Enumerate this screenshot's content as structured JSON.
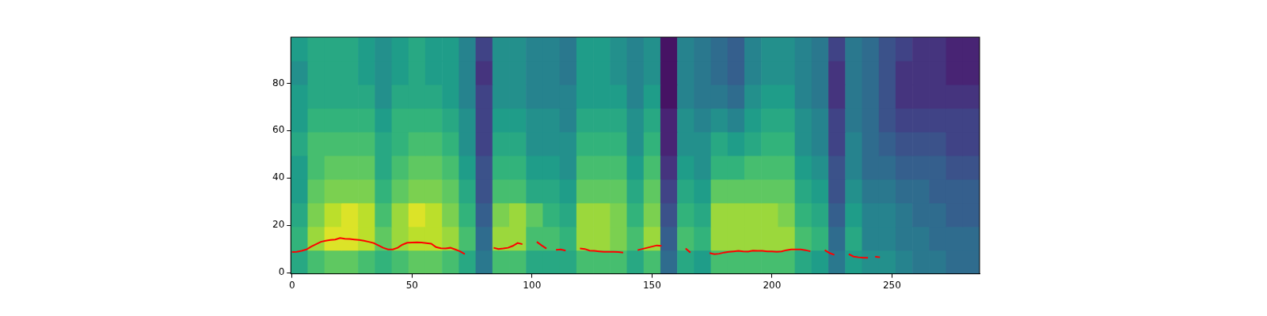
{
  "chart_data": {
    "type": "heatmap",
    "x_edges": [
      -0.5,
      6.5,
      13.5,
      20.5,
      27.5,
      34.5,
      41.5,
      48.5,
      55.5,
      62.5,
      69.5,
      76.5,
      83.5,
      90.5,
      97.5,
      104.5,
      111.5,
      118.5,
      125.5,
      132.5,
      139.5,
      146.5,
      153.5,
      160.5,
      167.5,
      174.5,
      181.5,
      188.5,
      195.5,
      202.5,
      209.5,
      216.5,
      223.5,
      230.5,
      237.5,
      244.5,
      251.5,
      258.5,
      265.5,
      272.5,
      279.5,
      286.5
    ],
    "y_edges": [
      -0.5,
      9.5,
      19.5,
      29.5,
      39.5,
      49.5,
      59.5,
      69.5,
      79.5,
      89.5,
      99.5
    ],
    "cells": [
      [
        6,
        7,
        7.5,
        7.5,
        7,
        6.5,
        7,
        7.5,
        7.5,
        7,
        6,
        4,
        7,
        7,
        6,
        6,
        6,
        7,
        7,
        7,
        6,
        7,
        3.5,
        6,
        5.5,
        7,
        7,
        7,
        7,
        7,
        6,
        5.5,
        4,
        5.5,
        5,
        5,
        4.5,
        4,
        4,
        3.5,
        3.5
      ],
      [
        6.5,
        8.5,
        9.5,
        9.5,
        9,
        7.5,
        8.5,
        9,
        9,
        8.5,
        7,
        3.5,
        8.5,
        8.5,
        7,
        7,
        6.5,
        8.5,
        8.5,
        8,
        7,
        8.5,
        3,
        7,
        6.5,
        8.5,
        8.5,
        8.5,
        8.5,
        8.5,
        7,
        6.5,
        3.5,
        6,
        4.5,
        4.5,
        4,
        4,
        3.5,
        3.5,
        3.5
      ],
      [
        6,
        8,
        9,
        9.5,
        9,
        7,
        8.5,
        9.5,
        9,
        8,
        6.5,
        3,
        8,
        8.5,
        7.5,
        6.5,
        6,
        8.5,
        8.5,
        8,
        6.5,
        8,
        2.5,
        6.5,
        6,
        8.5,
        8.5,
        8.5,
        8.5,
        8,
        6.5,
        6,
        3,
        5.5,
        4.5,
        4.5,
        4,
        3.5,
        3.5,
        3,
        3
      ],
      [
        5.5,
        7.5,
        8,
        8,
        8,
        6.5,
        7.5,
        8,
        8,
        7.5,
        6,
        2.5,
        7,
        7,
        6,
        6,
        5.5,
        7.5,
        7.5,
        7.5,
        6,
        7.5,
        2,
        6,
        5.5,
        7.5,
        7.5,
        7.5,
        7.5,
        7.5,
        6,
        5.5,
        2.5,
        5,
        4,
        4,
        3.5,
        3.5,
        3,
        3,
        3
      ],
      [
        5.5,
        7,
        7.5,
        7.5,
        7.5,
        6,
        7,
        7.5,
        7.5,
        7,
        5.5,
        2.5,
        6.5,
        6.5,
        5.5,
        5.5,
        5,
        7,
        7,
        7,
        5.5,
        7,
        1.5,
        5.5,
        5,
        6.5,
        6.5,
        7,
        7,
        7,
        5.5,
        5,
        2.5,
        4.5,
        3.5,
        3.5,
        3,
        3,
        3,
        2.5,
        2.5
      ],
      [
        6,
        7,
        7,
        7,
        7,
        6,
        6.5,
        7,
        7,
        6.5,
        5,
        2,
        6,
        6,
        5,
        5,
        5,
        6.5,
        6.5,
        6.5,
        5,
        6.5,
        1,
        5,
        5,
        6,
        5.5,
        6,
        6.5,
        6.5,
        5,
        4.5,
        2,
        4.5,
        3.5,
        3,
        2.5,
        2.5,
        2.5,
        2,
        2
      ],
      [
        5.5,
        6.5,
        6.5,
        6.5,
        6.5,
        5.5,
        6.5,
        6.5,
        6.5,
        6,
        5,
        2,
        5.5,
        5.5,
        5,
        5,
        4.5,
        6,
        6,
        6,
        5,
        6,
        1,
        5,
        4.5,
        5,
        4.5,
        5.5,
        6,
        6,
        5,
        4.5,
        2,
        4,
        3.5,
        2.5,
        2,
        2,
        2,
        2,
        2
      ],
      [
        5.5,
        6,
        6,
        6,
        6,
        5,
        6,
        6,
        6,
        5.5,
        4.5,
        2,
        5,
        5,
        4.5,
        4.5,
        4.5,
        5.5,
        5.5,
        5.5,
        4.5,
        5.5,
        0.5,
        4.5,
        4,
        4,
        3.5,
        5,
        5.5,
        5.5,
        4.5,
        4,
        1.5,
        4,
        3.5,
        2.5,
        1.5,
        1.5,
        1.5,
        1.5,
        1.5
      ],
      [
        5,
        6,
        6,
        6,
        5.5,
        5,
        5.5,
        6,
        5.5,
        5.5,
        4.5,
        1.5,
        5,
        5,
        4.5,
        4.5,
        4,
        5.5,
        5.5,
        5,
        4.5,
        5,
        0.5,
        4.5,
        4,
        3.5,
        3,
        4.5,
        5,
        5,
        4.5,
        4,
        1.5,
        4,
        3.5,
        2.5,
        1.5,
        1.5,
        1.5,
        1,
        1
      ],
      [
        5.5,
        6,
        6,
        6,
        5.5,
        5,
        5.5,
        6,
        5.5,
        5.5,
        4.5,
        2,
        5,
        5,
        4.5,
        4.5,
        4,
        5.5,
        5.5,
        5,
        4.5,
        5,
        0.5,
        4.5,
        4,
        3.5,
        3,
        4.5,
        5,
        5,
        4.5,
        4,
        2,
        4,
        3.5,
        2.5,
        2,
        1.5,
        1.5,
        1,
        1
      ]
    ],
    "color_range": [
      0,
      10
    ],
    "xlim": [
      -0.5,
      286.5
    ],
    "xticks": [
      0,
      50,
      100,
      150,
      200,
      250
    ],
    "ylim": [
      -0.5,
      99.5
    ],
    "yticks": [
      0,
      20,
      40,
      60,
      80
    ],
    "series": [
      {
        "type": "line",
        "color": "#ff0000",
        "x": [
          0,
          2,
          4,
          6,
          8,
          10,
          12,
          14,
          16,
          18,
          20,
          22,
          24,
          26,
          28,
          30,
          32,
          34,
          36,
          38,
          40,
          42,
          44,
          46,
          48,
          50,
          52,
          54,
          56,
          58,
          60,
          62,
          64,
          66,
          68,
          70,
          72,
          78,
          84,
          86,
          88,
          90,
          92,
          94,
          96,
          99,
          102,
          104,
          106,
          108,
          110,
          112,
          114,
          117,
          120,
          122,
          124,
          126,
          128,
          130,
          132,
          134,
          136,
          138,
          141,
          144,
          146,
          148,
          150,
          152,
          154,
          160,
          164,
          166,
          170,
          174,
          176,
          178,
          180,
          182,
          184,
          186,
          188,
          190,
          192,
          194,
          196,
          198,
          200,
          202,
          204,
          206,
          208,
          210,
          212,
          214,
          216,
          219,
          222,
          224,
          226,
          229,
          232,
          234,
          236,
          238,
          240,
          242,
          243,
          245
        ],
        "values": [
          8.7,
          8.8,
          9.2,
          9.8,
          11,
          12,
          13,
          13.5,
          13.8,
          14,
          14.6,
          14.3,
          14.2,
          14,
          13.8,
          13.5,
          13,
          12.5,
          11.5,
          10.5,
          9.8,
          9.8,
          10.5,
          11.8,
          12.6,
          12.7,
          12.8,
          12.7,
          12.5,
          12.2,
          10.8,
          10.3,
          10.2,
          10.5,
          9.8,
          9,
          7.8,
          null,
          10.5,
          10,
          10.2,
          10.5,
          11.3,
          12.5,
          12,
          null,
          13,
          11.5,
          10.2,
          null,
          9.6,
          9.8,
          9.3,
          null,
          10.2,
          10,
          9.3,
          9.2,
          9,
          8.8,
          8.8,
          8.8,
          8.7,
          8.5,
          null,
          9.5,
          10,
          10.5,
          11,
          11.5,
          11.3,
          null,
          10.2,
          8.5,
          null,
          8.3,
          7.8,
          8,
          8.5,
          8.8,
          9,
          9.2,
          9,
          8.9,
          9.3,
          9.2,
          9.2,
          9,
          9,
          8.8,
          9,
          9.5,
          9.8,
          9.8,
          9.8,
          9.5,
          9,
          null,
          9.5,
          8.3,
          7.5,
          null,
          7.8,
          6.8,
          6.5,
          6.3,
          6.3,
          null,
          6.7,
          6.5
        ]
      }
    ]
  }
}
